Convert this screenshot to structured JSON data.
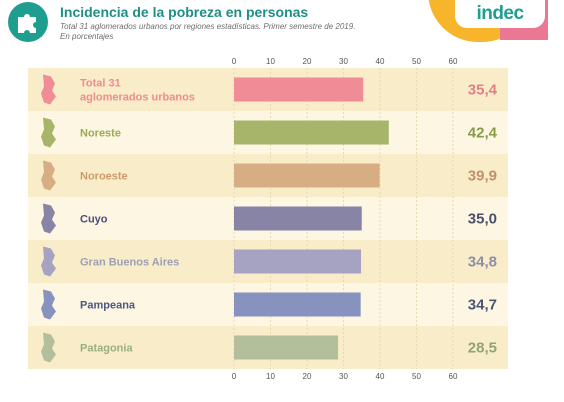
{
  "header": {
    "title": "Incidencia de la pobreza en personas",
    "subtitle_line1": "Total 31 aglomerados urbanos por regiones estadísticas. Primer semestre de 2019.",
    "subtitle_line2": "En porcentajes",
    "brand": "indec"
  },
  "colors": {
    "row_band_light": "#fdf6e3",
    "row_band_dark": "#f9ecc8",
    "teal": "#1e8f86",
    "yellow": "#f6b52a",
    "pink": "#ea7895"
  },
  "chart_data": {
    "type": "bar",
    "orientation": "horizontal",
    "categories": [
      "Total 31 aglomerados urbanos",
      "Noreste",
      "Noroeste",
      "Cuyo",
      "Gran Buenos Aires",
      "Pampeana",
      "Patagonia"
    ],
    "label_lines": [
      [
        "Total 31",
        "aglomerados urbanos"
      ],
      [
        "Noreste"
      ],
      [
        "Noroeste"
      ],
      [
        "Cuyo"
      ],
      [
        "Gran Buenos Aires"
      ],
      [
        "Pampeana"
      ],
      [
        "Patagonia"
      ]
    ],
    "values": [
      35.4,
      42.4,
      39.9,
      35.0,
      34.8,
      34.7,
      28.5
    ],
    "value_labels": [
      "35,4",
      "42,4",
      "39,9",
      "35,0",
      "34,8",
      "34,7",
      "28,5"
    ],
    "bar_colors": [
      "#f08c95",
      "#a6b569",
      "#d7ae84",
      "#8784a6",
      "#a5a3c1",
      "#8892bf",
      "#b2bf9a"
    ],
    "label_colors": [
      "#ec8c94",
      "#9aaa55",
      "#cf9b6b",
      "#4a4e78",
      "#9d9fb6",
      "#4b5682",
      "#9aaf7e"
    ],
    "value_colors": [
      "#e07f88",
      "#889b4b",
      "#c0926c",
      "#48506b",
      "#8c8ea7",
      "#4a5570",
      "#8fa479"
    ],
    "xlim": [
      0,
      60
    ],
    "xticks": [
      0,
      10,
      20,
      30,
      40,
      50,
      60
    ],
    "grid": true
  }
}
